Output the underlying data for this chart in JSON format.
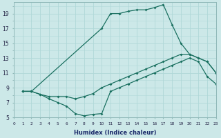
{
  "xlabel": "Humidex (Indice chaleur)",
  "bg_color": "#cce8e8",
  "grid_color": "#b0d8d8",
  "line_color": "#1a7060",
  "line1_x": [
    1,
    2,
    3,
    4,
    5,
    6,
    7,
    8,
    9,
    10,
    11,
    12,
    13,
    14,
    15,
    16,
    17,
    18,
    19,
    20,
    21,
    22,
    23
  ],
  "line1_y": [
    8.5,
    8.5,
    8.1,
    7.5,
    7.0,
    6.5,
    5.5,
    5.2,
    5.4,
    5.5,
    8.5,
    9.0,
    9.5,
    10.0,
    10.5,
    11.0,
    11.5,
    12.0,
    12.5,
    13.0,
    12.5,
    10.5,
    9.5
  ],
  "line2_x": [
    1,
    2,
    3,
    4,
    5,
    6,
    7,
    8,
    9,
    10,
    11,
    12,
    13,
    14,
    15,
    16,
    17,
    18,
    19,
    20,
    21,
    22,
    23
  ],
  "line2_y": [
    8.5,
    8.5,
    8.1,
    7.8,
    7.8,
    7.8,
    7.5,
    7.8,
    8.2,
    9.0,
    9.5,
    10.0,
    10.5,
    11.0,
    11.5,
    12.0,
    12.5,
    13.0,
    13.5,
    13.5,
    13.0,
    12.5,
    11.0
  ],
  "line3_x": [
    1,
    2,
    10,
    11,
    12,
    13,
    14,
    15,
    16,
    17,
    18,
    19,
    20,
    21,
    22,
    23
  ],
  "line3_y": [
    8.5,
    8.5,
    17.0,
    19.0,
    19.0,
    19.3,
    19.5,
    19.5,
    19.8,
    20.2,
    17.5,
    15.0,
    13.5,
    13.0,
    12.5,
    11.0
  ],
  "xlim": [
    0,
    23
  ],
  "ylim": [
    5,
    20
  ],
  "xticks": [
    0,
    1,
    2,
    3,
    4,
    5,
    6,
    7,
    8,
    9,
    10,
    11,
    12,
    13,
    14,
    15,
    16,
    17,
    18,
    19,
    20,
    21,
    22,
    23
  ],
  "yticks": [
    5,
    7,
    9,
    11,
    13,
    15,
    17,
    19
  ]
}
